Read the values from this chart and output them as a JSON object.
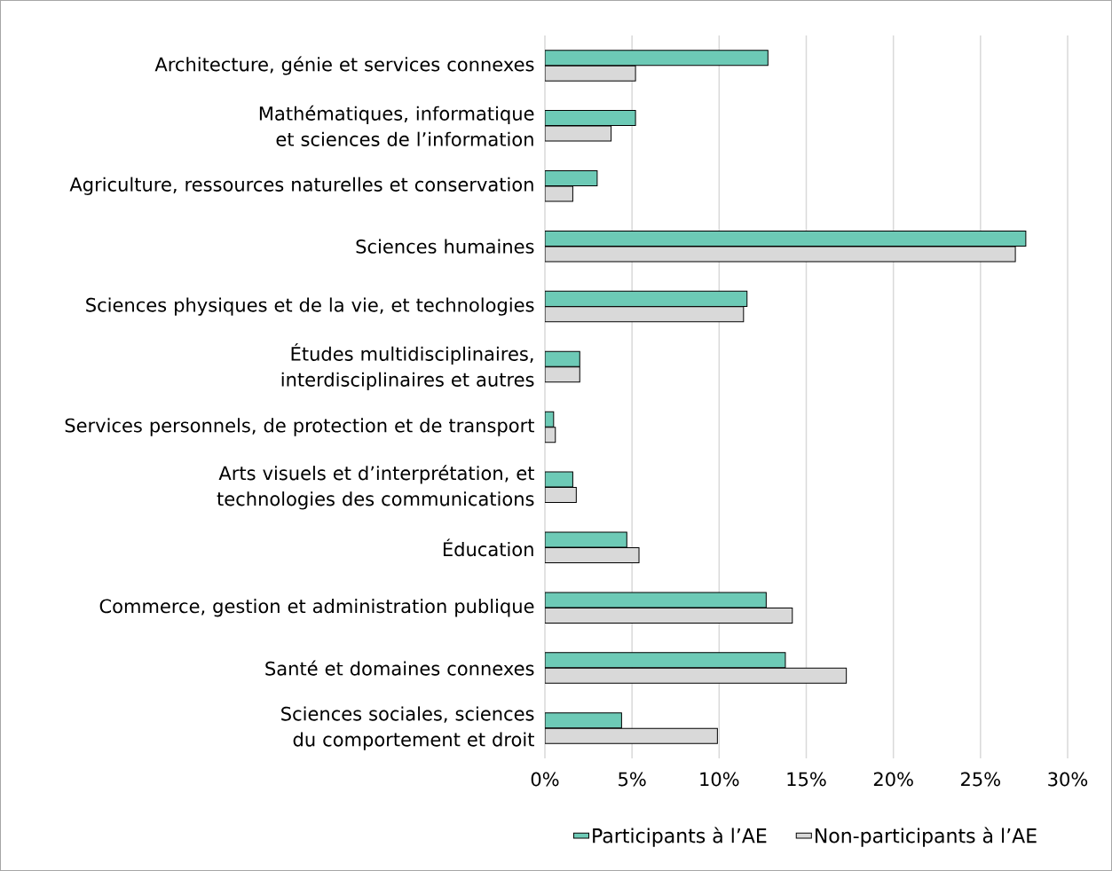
{
  "chart_data": {
    "type": "bar",
    "orientation": "horizontal",
    "categories": [
      "Architecture, génie et services connexes",
      "Mathématiques, informatique et sciences de l’information",
      "Agriculture, ressources naturelles et conservation",
      "Sciences humaines",
      "Sciences physiques et de la vie, et technologies",
      "Études multidisciplinaires, interdisciplinaires et autres",
      "Services personnels, de protection et de transport",
      "Arts visuels et d’interprétation, et technologies des communications",
      "Éducation",
      "Commerce, gestion et administration publique",
      "Santé et domaines connexes",
      "Sciences sociales, sciences du comportement et droit"
    ],
    "series": [
      {
        "name": "Participants à l’AE",
        "color": "#6dcab6",
        "values": [
          12.8,
          5.2,
          3.0,
          27.6,
          11.6,
          2.0,
          0.5,
          1.6,
          4.7,
          12.7,
          13.8,
          4.4
        ]
      },
      {
        "name": "Non-participants à l’AE",
        "color": "#d9d9d9",
        "values": [
          5.2,
          3.8,
          1.6,
          27.0,
          11.4,
          2.0,
          0.6,
          1.8,
          5.4,
          14.2,
          17.3,
          9.9
        ]
      }
    ],
    "xlim": [
      0,
      30
    ],
    "xticks": [
      {
        "value": 0,
        "label": "0%"
      },
      {
        "value": 5,
        "label": "5%"
      },
      {
        "value": 10,
        "label": "10%"
      },
      {
        "value": 15,
        "label": "15%"
      },
      {
        "value": 20,
        "label": "20%"
      },
      {
        "value": 25,
        "label": "25%"
      },
      {
        "value": 30,
        "label": "30%"
      }
    ],
    "grid": "x",
    "legend": "bottom"
  }
}
